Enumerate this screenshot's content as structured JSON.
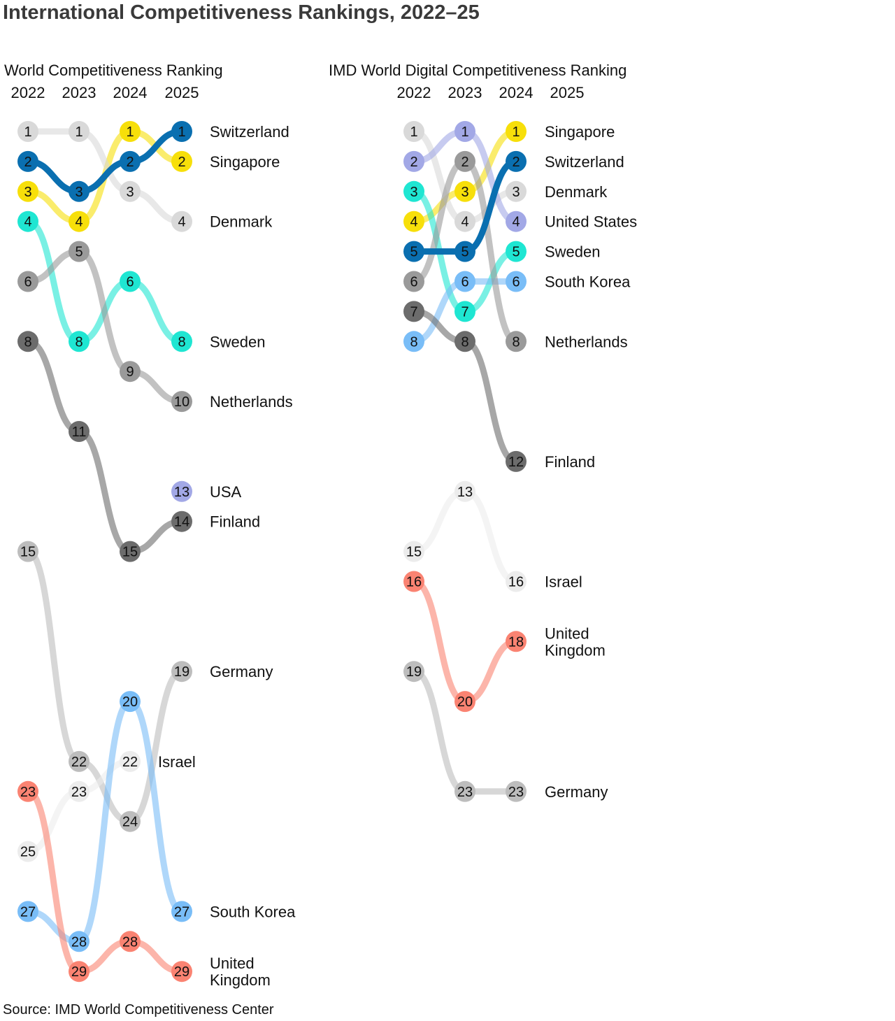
{
  "title": "International Competitiveness Rankings, 2022–25",
  "source": "Source: IMD World Competitiveness Center",
  "chart_data": [
    {
      "type": "bump",
      "title": "World Competitiveness Ranking",
      "years": [
        "2022",
        "2023",
        "2024",
        "2025"
      ],
      "series": [
        {
          "name": "Switzerland",
          "label_lines": [
            "Switzerland"
          ],
          "color": "#0a6fb0",
          "opacity": 1.0,
          "ranks": [
            2,
            3,
            2,
            1
          ]
        },
        {
          "name": "Singapore",
          "label_lines": [
            "Singapore"
          ],
          "color": "#f7df0a",
          "opacity": 0.6,
          "ranks": [
            3,
            4,
            1,
            2
          ]
        },
        {
          "name": "Denmark",
          "label_lines": [
            "Denmark"
          ],
          "color": "#d9d9d9",
          "opacity": 0.6,
          "ranks": [
            1,
            1,
            3,
            4
          ]
        },
        {
          "name": "Sweden",
          "label_lines": [
            "Sweden"
          ],
          "color": "#1fe6d2",
          "opacity": 0.6,
          "ranks": [
            4,
            8,
            6,
            8
          ]
        },
        {
          "name": "Netherlands",
          "label_lines": [
            "Netherlands"
          ],
          "color": "#9a9a9a",
          "opacity": 0.6,
          "ranks": [
            6,
            5,
            9,
            10
          ]
        },
        {
          "name": "USA",
          "label_lines": [
            "USA"
          ],
          "color": "#a2a8e6",
          "opacity": 0.6,
          "ranks": [
            null,
            null,
            null,
            13
          ]
        },
        {
          "name": "Finland",
          "label_lines": [
            "Finland"
          ],
          "color": "#6c6c6c",
          "opacity": 0.6,
          "ranks": [
            8,
            11,
            15,
            14
          ]
        },
        {
          "name": "Germany",
          "label_lines": [
            "Germany"
          ],
          "color": "#bdbdbd",
          "opacity": 0.6,
          "ranks": [
            15,
            22,
            24,
            19
          ]
        },
        {
          "name": "Israel",
          "label_lines": [
            "Israel"
          ],
          "color": "#ececec",
          "opacity": 0.6,
          "ranks": [
            25,
            23,
            22,
            null
          ]
        },
        {
          "name": "South Korea",
          "label_lines": [
            "South Korea"
          ],
          "color": "#79bdf7",
          "opacity": 0.6,
          "ranks": [
            27,
            28,
            20,
            27
          ]
        },
        {
          "name": "United Kingdom",
          "label_lines": [
            "United",
            "Kingdom"
          ],
          "color": "#fa8372",
          "opacity": 0.6,
          "ranks": [
            23,
            29,
            28,
            29
          ]
        }
      ]
    },
    {
      "type": "bump",
      "title": "IMD World Digital Competitiveness Ranking",
      "years": [
        "2022",
        "2023",
        "2024",
        "2025"
      ],
      "series": [
        {
          "name": "Singapore",
          "label_lines": [
            "Singapore"
          ],
          "color": "#f7df0a",
          "opacity": 0.6,
          "ranks": [
            4,
            3,
            1,
            null
          ]
        },
        {
          "name": "Switzerland",
          "label_lines": [
            "Switzerland"
          ],
          "color": "#0a6fb0",
          "opacity": 1.0,
          "ranks": [
            5,
            5,
            2,
            null
          ]
        },
        {
          "name": "Denmark",
          "label_lines": [
            "Denmark"
          ],
          "color": "#d9d9d9",
          "opacity": 0.6,
          "ranks": [
            1,
            4,
            3,
            null
          ]
        },
        {
          "name": "United States",
          "label_lines": [
            "United States"
          ],
          "color": "#a2a8e6",
          "opacity": 0.6,
          "ranks": [
            2,
            1,
            4,
            null
          ]
        },
        {
          "name": "Sweden",
          "label_lines": [
            "Sweden"
          ],
          "color": "#1fe6d2",
          "opacity": 0.6,
          "ranks": [
            3,
            7,
            5,
            null
          ]
        },
        {
          "name": "South Korea",
          "label_lines": [
            "South Korea"
          ],
          "color": "#79bdf7",
          "opacity": 0.6,
          "ranks": [
            8,
            6,
            6,
            null
          ]
        },
        {
          "name": "Netherlands",
          "label_lines": [
            "Netherlands"
          ],
          "color": "#9a9a9a",
          "opacity": 0.6,
          "ranks": [
            6,
            2,
            8,
            null
          ]
        },
        {
          "name": "Finland",
          "label_lines": [
            "Finland"
          ],
          "color": "#6c6c6c",
          "opacity": 0.6,
          "ranks": [
            7,
            8,
            12,
            null
          ]
        },
        {
          "name": "Israel",
          "label_lines": [
            "Israel"
          ],
          "color": "#ececec",
          "opacity": 0.6,
          "ranks": [
            15,
            13,
            16,
            null
          ]
        },
        {
          "name": "United Kingdom",
          "label_lines": [
            "United",
            "Kingdom"
          ],
          "color": "#fa8372",
          "opacity": 0.6,
          "ranks": [
            16,
            20,
            18,
            null
          ]
        },
        {
          "name": "Germany",
          "label_lines": [
            "Germany"
          ],
          "color": "#bdbdbd",
          "opacity": 0.6,
          "ranks": [
            19,
            23,
            23,
            null
          ]
        }
      ]
    }
  ]
}
